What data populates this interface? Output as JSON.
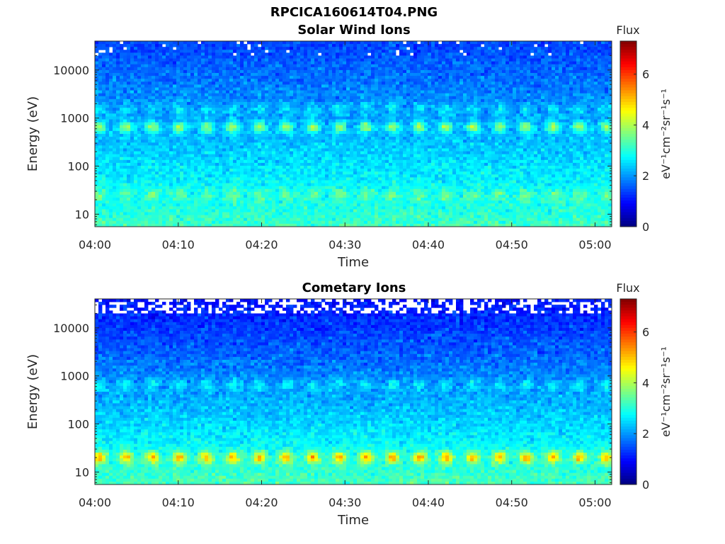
{
  "figure": {
    "title": "RPCICA160614T04.PNG"
  },
  "colorbar": {
    "label": "Flux",
    "units_text": "eV⁻¹cm⁻²sr⁻¹s⁻¹",
    "ticks": [
      "0",
      "2",
      "4",
      "6"
    ],
    "range": [
      0,
      7.3
    ],
    "colormap": "jet"
  },
  "chart_data": [
    {
      "type": "heatmap",
      "title": "Solar Wind Ions",
      "xlabel": "Time",
      "ylabel": "Energy (eV)",
      "x_tick_labels": [
        "04:00",
        "04:10",
        "04:20",
        "04:30",
        "04:40",
        "04:50",
        "05:00"
      ],
      "x_range": [
        "04:00",
        "05:02"
      ],
      "y_tick_labels": [
        "10",
        "100",
        "1000",
        "10000"
      ],
      "y_scale": "log",
      "y_range": [
        5.5,
        40000
      ],
      "color_label": "Flux",
      "color_range": [
        0,
        7.3
      ],
      "features": {
        "background_low_energy_level": 3.2,
        "background_high_energy_level": 1.4,
        "band_energies_eV": [
          650,
          1500,
          25
        ],
        "band_levels": [
          4.0,
          2.7,
          3.6
        ],
        "pulse_period_min": 3.2,
        "empty_fraction_above_20000_eV": 0.05
      }
    },
    {
      "type": "heatmap",
      "title": "Cometary Ions",
      "xlabel": "Time",
      "ylabel": "Energy (eV)",
      "x_tick_labels": [
        "04:00",
        "04:10",
        "04:20",
        "04:30",
        "04:40",
        "04:50",
        "05:00"
      ],
      "x_range": [
        "04:00",
        "05:02"
      ],
      "y_tick_labels": [
        "10",
        "100",
        "1000",
        "10000"
      ],
      "y_scale": "log",
      "y_range": [
        5.5,
        40000
      ],
      "color_label": "Flux",
      "color_range": [
        0,
        7.3
      ],
      "features": {
        "background_low_energy_level": 3.3,
        "background_high_energy_level": 1.0,
        "band_energies_eV": [
          20,
          650
        ],
        "band_levels": [
          5.3,
          2.8
        ],
        "pulse_period_min": 3.2,
        "empty_fraction_above_20000_eV": 0.45
      }
    }
  ]
}
